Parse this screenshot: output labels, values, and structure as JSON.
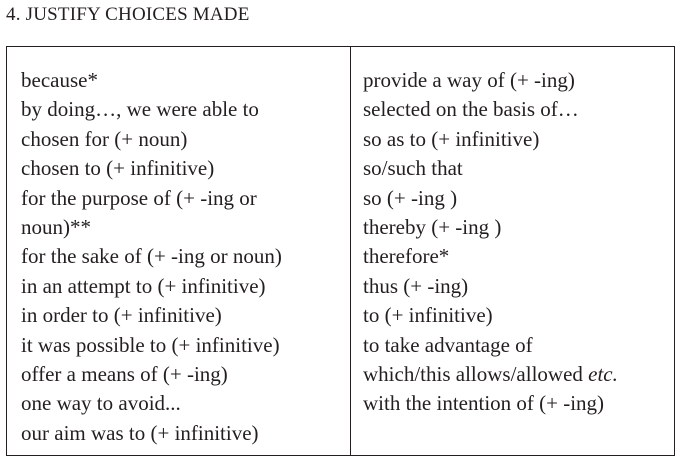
{
  "heading": "4. JUSTIFY CHOICES MADE",
  "left_column": [
    "because*",
    "by doing…, we were able to",
    "chosen for (+ noun)",
    "chosen to (+ infinitive)",
    "for the purpose of (+ -ing or",
    "noun)**",
    "for the sake of (+ -ing or noun)",
    "in an attempt to (+ infinitive)",
    "in order to (+ infinitive)",
    "it was possible to (+ infinitive)",
    "offer a means of (+ -ing)",
    "one way to avoid...",
    "our aim was to (+ infinitive)"
  ],
  "right_column": [
    "provide a way of (+ -ing)",
    "selected on the basis of…",
    "so as to (+ infinitive)",
    "so/such that",
    "so (+ -ing )",
    "thereby (+ -ing )",
    "therefore*",
    "thus (+ -ing)",
    "to (+ infinitive)",
    "to take advantage of",
    "which/this allows/allowed",
    "with the intention of (+ -ing)"
  ],
  "right_column_italic_suffix": "etc."
}
